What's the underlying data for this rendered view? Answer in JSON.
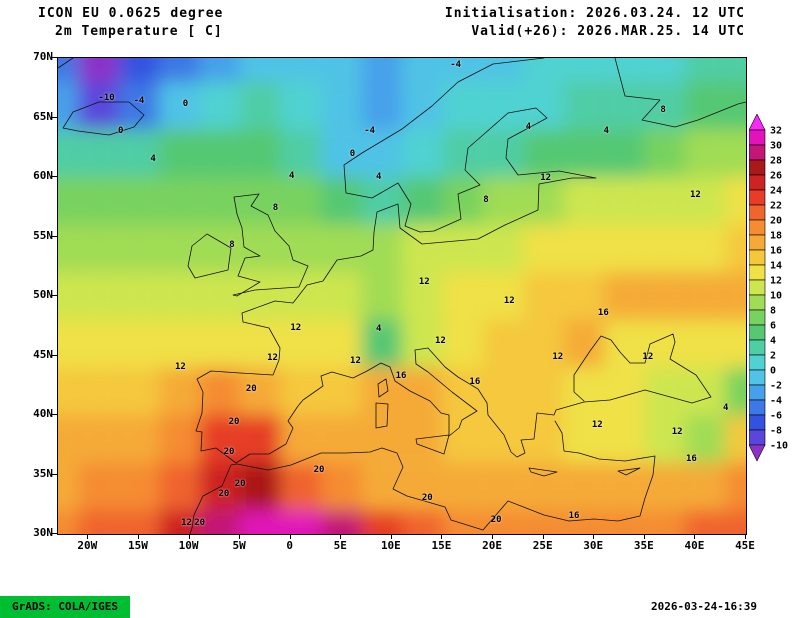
{
  "header": {
    "model": "ICON EU 0.0625 degree",
    "field": "2m Temperature [ C]",
    "init": "Initialisation: 2026.03.24. 12 UTC",
    "valid": "Valid(+26): 2026.MAR.25. 14 UTC"
  },
  "footer": {
    "grads": "GrADS: COLA/IGES",
    "timestamp": "2026-03-24-16:39"
  },
  "chart_data": {
    "type": "heatmap",
    "title": "ICON EU 0.0625 degree 2m Temperature [ C]",
    "projection": "latlon",
    "lon_range": [
      -23,
      45
    ],
    "lat_range": [
      30,
      70
    ],
    "units": "C",
    "lat_ticks": [
      {
        "label": "70N",
        "lat": 70
      },
      {
        "label": "65N",
        "lat": 65
      },
      {
        "label": "60N",
        "lat": 60
      },
      {
        "label": "55N",
        "lat": 55
      },
      {
        "label": "50N",
        "lat": 50
      },
      {
        "label": "45N",
        "lat": 45
      },
      {
        "label": "40N",
        "lat": 40
      },
      {
        "label": "35N",
        "lat": 35
      },
      {
        "label": "30N",
        "lat": 30
      }
    ],
    "lon_ticks": [
      {
        "label": "20W",
        "lon": -20
      },
      {
        "label": "15W",
        "lon": -15
      },
      {
        "label": "10W",
        "lon": -10
      },
      {
        "label": "5W",
        "lon": -5
      },
      {
        "label": "0",
        "lon": 0
      },
      {
        "label": "5E",
        "lon": 5
      },
      {
        "label": "10E",
        "lon": 10
      },
      {
        "label": "15E",
        "lon": 15
      },
      {
        "label": "20E",
        "lon": 20
      },
      {
        "label": "25E",
        "lon": 25
      },
      {
        "label": "30E",
        "lon": 30
      },
      {
        "label": "35E",
        "lon": 35
      },
      {
        "label": "40E",
        "lon": 40
      },
      {
        "label": "45E",
        "lon": 45
      }
    ],
    "levels": [
      -10,
      -8,
      -6,
      -4,
      -2,
      0,
      2,
      4,
      6,
      8,
      10,
      12,
      14,
      16,
      18,
      20,
      22,
      24,
      26,
      28,
      30,
      32
    ],
    "colors": [
      "#8c32c8",
      "#5a46dc",
      "#3452e1",
      "#3c78e6",
      "#46a0eb",
      "#50c3e6",
      "#50d2d2",
      "#4fcda5",
      "#55c873",
      "#78d25f",
      "#a0dc55",
      "#cde650",
      "#f0e146",
      "#f5c83c",
      "#f5aa37",
      "#f58c32",
      "#f0642d",
      "#e63c28",
      "#cd2323",
      "#aa1919",
      "#c31677",
      "#e114b9",
      "#fa28fa"
    ],
    "colorbar_labels_top_to_bottom": [
      "32",
      "30",
      "28",
      "26",
      "24",
      "22",
      "20",
      "18",
      "16",
      "14",
      "12",
      "10",
      "8",
      "6",
      "4",
      "2",
      "0",
      "-2",
      "-4",
      "-6",
      "-8",
      "-10"
    ],
    "grid": {
      "lons": [
        -23,
        -19,
        -15,
        -11,
        -7,
        -3,
        1,
        5,
        9,
        13,
        17,
        21,
        25,
        29,
        33,
        37,
        41,
        45
      ],
      "lats": [
        70,
        66,
        62,
        58,
        54,
        50,
        46,
        42,
        38,
        34,
        30
      ],
      "values": [
        [
          -6,
          -11,
          -8,
          -5,
          -3,
          -2,
          -1,
          -2,
          -3,
          -2,
          -1,
          -1,
          0,
          0,
          1,
          1,
          2,
          2
        ],
        [
          -4,
          -9,
          -5,
          -1,
          1,
          2,
          1,
          -1,
          -3,
          -1,
          0,
          1,
          1,
          2,
          2,
          3,
          4,
          5
        ],
        [
          3,
          3,
          3,
          4,
          4,
          4,
          2,
          -1,
          -2,
          1,
          2,
          3,
          4,
          4,
          5,
          6,
          8,
          9
        ],
        [
          6,
          6,
          6,
          7,
          7,
          7,
          6,
          4,
          3,
          5,
          6,
          8,
          9,
          10,
          10,
          11,
          11,
          12
        ],
        [
          8,
          8,
          8,
          9,
          9,
          9,
          9,
          8,
          9,
          10,
          11,
          11,
          12,
          12,
          13,
          13,
          13,
          14
        ],
        [
          10,
          10,
          11,
          11,
          11,
          11,
          11,
          10,
          9,
          11,
          12,
          13,
          14,
          15,
          16,
          16,
          16,
          16
        ],
        [
          12,
          12,
          12,
          13,
          13,
          13,
          13,
          12,
          5,
          10,
          13,
          14,
          15,
          16,
          12,
          12,
          13,
          12
        ],
        [
          14,
          14,
          15,
          16,
          19,
          17,
          15,
          15,
          16,
          17,
          15,
          14,
          14,
          12,
          12,
          11,
          10,
          6
        ],
        [
          16,
          16,
          17,
          19,
          22,
          22,
          17,
          16,
          16,
          16,
          15,
          15,
          14,
          13,
          12,
          10,
          8,
          15
        ],
        [
          17,
          18,
          19,
          21,
          24,
          26,
          21,
          18,
          17,
          17,
          16,
          16,
          16,
          16,
          16,
          16,
          17,
          18
        ],
        [
          19,
          20,
          21,
          25,
          29,
          31,
          30,
          28,
          22,
          20,
          19,
          18,
          18,
          18,
          18,
          19,
          20,
          21
        ]
      ]
    },
    "contour_labels": [
      {
        "v": "-10",
        "lon": -18.2,
        "lat": 66.6
      },
      {
        "v": "-4",
        "lon": -15.0,
        "lat": 66.4
      },
      {
        "v": "0",
        "lon": -16.8,
        "lat": 63.9
      },
      {
        "v": "0",
        "lon": -10.4,
        "lat": 66.1
      },
      {
        "v": "4",
        "lon": -13.6,
        "lat": 61.5
      },
      {
        "v": "-4",
        "lon": 16.3,
        "lat": 69.4
      },
      {
        "v": "0",
        "lon": 6.1,
        "lat": 61.9
      },
      {
        "v": "-4",
        "lon": 7.8,
        "lat": 63.9
      },
      {
        "v": "4",
        "lon": 0.1,
        "lat": 60.1
      },
      {
        "v": "4",
        "lon": 8.7,
        "lat": 60.0
      },
      {
        "v": "8",
        "lon": -5.8,
        "lat": 54.3
      },
      {
        "v": "8",
        "lon": -1.5,
        "lat": 57.4
      },
      {
        "v": "4",
        "lon": 23.5,
        "lat": 64.2
      },
      {
        "v": "12",
        "lon": 25.2,
        "lat": 59.9
      },
      {
        "v": "8",
        "lon": 19.3,
        "lat": 58.1
      },
      {
        "v": "4",
        "lon": 31.2,
        "lat": 63.9
      },
      {
        "v": "8",
        "lon": 36.8,
        "lat": 65.6
      },
      {
        "v": "12",
        "lon": 40.0,
        "lat": 58.5
      },
      {
        "v": "12",
        "lon": 13.2,
        "lat": 51.2
      },
      {
        "v": "12",
        "lon": 0.5,
        "lat": 47.3
      },
      {
        "v": "4",
        "lon": 8.7,
        "lat": 47.2
      },
      {
        "v": "12",
        "lon": 14.8,
        "lat": 46.2
      },
      {
        "v": "12",
        "lon": 21.6,
        "lat": 49.6
      },
      {
        "v": "16",
        "lon": 30.9,
        "lat": 48.6
      },
      {
        "v": "12",
        "lon": 26.4,
        "lat": 44.9
      },
      {
        "v": "12",
        "lon": -10.9,
        "lat": 44.0
      },
      {
        "v": "12",
        "lon": -1.8,
        "lat": 44.8
      },
      {
        "v": "20",
        "lon": -3.9,
        "lat": 42.2
      },
      {
        "v": "20",
        "lon": -5.6,
        "lat": 39.4
      },
      {
        "v": "20",
        "lon": -6.1,
        "lat": 36.9
      },
      {
        "v": "12",
        "lon": 6.4,
        "lat": 44.5
      },
      {
        "v": "16",
        "lon": 10.9,
        "lat": 43.3
      },
      {
        "v": "16",
        "lon": 18.2,
        "lat": 42.8
      },
      {
        "v": "12",
        "lon": 35.3,
        "lat": 44.9
      },
      {
        "v": "12",
        "lon": 30.3,
        "lat": 39.2
      },
      {
        "v": "12",
        "lon": 38.2,
        "lat": 38.6
      },
      {
        "v": "4",
        "lon": 43.0,
        "lat": 40.6
      },
      {
        "v": "16",
        "lon": 39.6,
        "lat": 36.3
      },
      {
        "v": "20",
        "lon": -5.0,
        "lat": 34.2
      },
      {
        "v": "20",
        "lon": 2.8,
        "lat": 35.4
      },
      {
        "v": "20",
        "lon": -6.6,
        "lat": 33.4
      },
      {
        "v": "12",
        "lon": -10.3,
        "lat": 30.9
      },
      {
        "v": "20",
        "lon": -9.0,
        "lat": 30.9
      },
      {
        "v": "20",
        "lon": 20.3,
        "lat": 31.2
      },
      {
        "v": "16",
        "lon": 28.0,
        "lat": 31.5
      },
      {
        "v": "20",
        "lon": 13.5,
        "lat": 33.0
      }
    ]
  }
}
